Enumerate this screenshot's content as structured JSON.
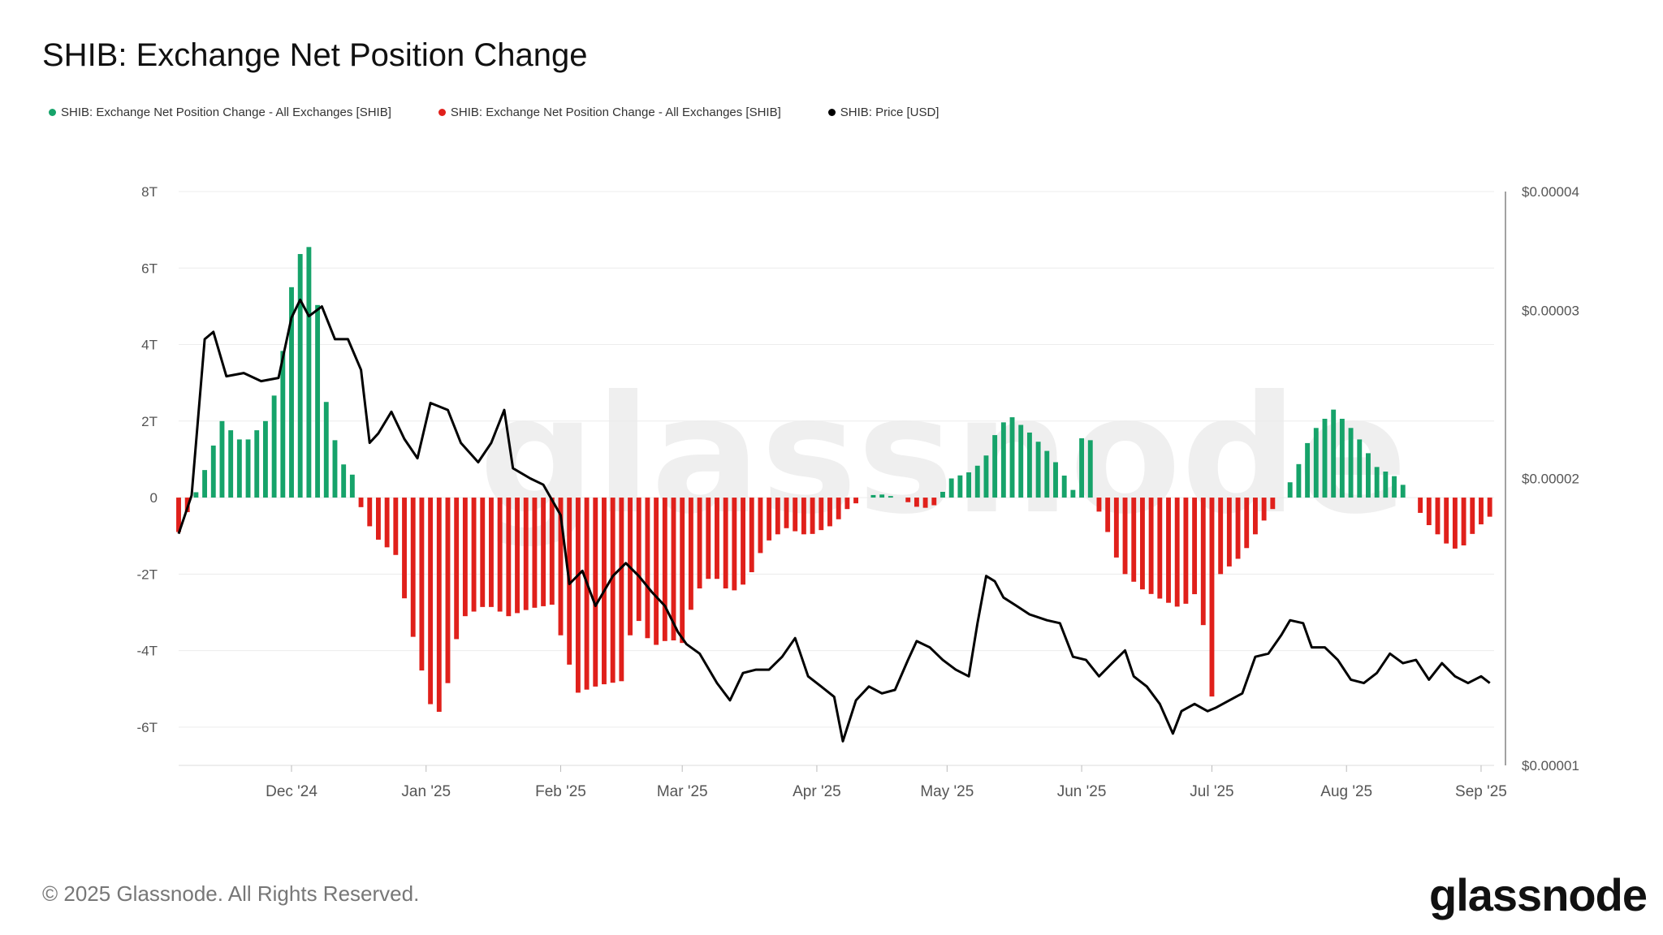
{
  "header": {
    "title": "SHIB: Exchange Net Position Change"
  },
  "legend": [
    {
      "label": "SHIB: Exchange Net Position Change - All Exchanges [SHIB]",
      "color": "#16a36a"
    },
    {
      "label": "SHIB: Exchange Net Position Change - All Exchanges [SHIB]",
      "color": "#e0201b"
    },
    {
      "label": "SHIB: Price [USD]",
      "color": "#000000"
    }
  ],
  "footer": {
    "copyright": "© 2025 Glassnode. All Rights Reserved.",
    "brand": "glassnode"
  },
  "watermark": "glassnode",
  "chart_data": {
    "type": "bar",
    "title": "SHIB: Exchange Net Position Change",
    "x_tick_labels": [
      "Dec '24",
      "Jan '25",
      "Feb '25",
      "Mar '25",
      "Apr '25",
      "May '25",
      "Jun '25",
      "Jul '25",
      "Aug '25",
      "Sep '25"
    ],
    "x_tick_dates": [
      "2024-12-01",
      "2025-01-01",
      "2025-02-01",
      "2025-03-01",
      "2025-04-01",
      "2025-05-01",
      "2025-06-01",
      "2025-07-01",
      "2025-08-01",
      "2025-09-01"
    ],
    "x_range": [
      "2024-11-05",
      "2025-09-04"
    ],
    "y_left": {
      "ticks": [
        "8T",
        "6T",
        "4T",
        "2T",
        "0",
        "-2T",
        "-4T",
        "-6T"
      ],
      "values": [
        8,
        6,
        4,
        2,
        0,
        -2,
        -4,
        -6
      ],
      "unit": "trillion SHIB",
      "range": [
        -7,
        8
      ]
    },
    "y_right": {
      "ticks": [
        "$0.00004",
        "$0.00003",
        "$0.00002",
        "$0.00001"
      ],
      "values": [
        4e-05,
        3e-05,
        2e-05,
        1e-05
      ],
      "scale": "log",
      "range": [
        1e-05,
        4e-05
      ]
    },
    "grid": true,
    "legend_position": "top-left",
    "series": [
      {
        "name": "SHIB: Exchange Net Position Change - All Exchanges [SHIB]",
        "kind": "bar",
        "color_positive": "#16a36a",
        "color_negative": "#e0201b",
        "points": [
          [
            "2024-11-05",
            -0.9
          ],
          [
            "2024-11-10",
            0.4
          ],
          [
            "2024-11-15",
            2.0
          ],
          [
            "2024-11-20",
            1.4
          ],
          [
            "2024-11-25",
            2.0
          ],
          [
            "2024-11-28",
            3.0
          ],
          [
            "2024-12-01",
            5.5
          ],
          [
            "2024-12-04",
            6.8
          ],
          [
            "2024-12-06",
            6.3
          ],
          [
            "2024-12-09",
            2.5
          ],
          [
            "2024-12-12",
            1.0
          ],
          [
            "2024-12-15",
            0.6
          ],
          [
            "2024-12-16",
            0.0
          ],
          [
            "2024-12-20",
            -1.0
          ],
          [
            "2024-12-25",
            -1.5
          ],
          [
            "2024-12-28",
            -3.2
          ],
          [
            "2025-01-02",
            -5.4
          ],
          [
            "2025-01-05",
            -5.7
          ],
          [
            "2025-01-07",
            -4.0
          ],
          [
            "2025-01-10",
            -3.1
          ],
          [
            "2025-01-15",
            -2.8
          ],
          [
            "2025-01-20",
            -3.1
          ],
          [
            "2025-01-25",
            -2.9
          ],
          [
            "2025-01-30",
            -2.8
          ],
          [
            "2025-02-02",
            -4.0
          ],
          [
            "2025-02-05",
            -5.1
          ],
          [
            "2025-02-10",
            -4.9
          ],
          [
            "2025-02-15",
            -4.8
          ],
          [
            "2025-02-18",
            -3.0
          ],
          [
            "2025-02-22",
            -3.9
          ],
          [
            "2025-02-26",
            -3.7
          ],
          [
            "2025-03-01",
            -3.8
          ],
          [
            "2025-03-04",
            -2.5
          ],
          [
            "2025-03-08",
            -2.0
          ],
          [
            "2025-03-12",
            -2.5
          ],
          [
            "2025-03-16",
            -2.2
          ],
          [
            "2025-03-20",
            -1.2
          ],
          [
            "2025-03-25",
            -0.8
          ],
          [
            "2025-03-30",
            -1.0
          ],
          [
            "2025-04-05",
            -0.7
          ],
          [
            "2025-04-08",
            -0.3
          ],
          [
            "2025-04-12",
            0.0
          ],
          [
            "2025-04-15",
            0.1
          ],
          [
            "2025-04-20",
            0.0
          ],
          [
            "2025-04-25",
            -0.3
          ],
          [
            "2025-04-28",
            -0.2
          ],
          [
            "2025-05-02",
            0.5
          ],
          [
            "2025-05-07",
            0.7
          ],
          [
            "2025-05-10",
            1.1
          ],
          [
            "2025-05-13",
            1.9
          ],
          [
            "2025-05-16",
            2.1
          ],
          [
            "2025-05-20",
            1.7
          ],
          [
            "2025-05-25",
            1.1
          ],
          [
            "2025-05-29",
            0.4
          ],
          [
            "2025-05-31",
            0.0
          ],
          [
            "2025-06-02",
            3.1
          ],
          [
            "2025-06-04",
            -0.1
          ],
          [
            "2025-06-07",
            -0.9
          ],
          [
            "2025-06-10",
            -1.9
          ],
          [
            "2025-06-15",
            -2.4
          ],
          [
            "2025-06-20",
            -2.7
          ],
          [
            "2025-06-24",
            -2.9
          ],
          [
            "2025-06-28",
            -2.4
          ],
          [
            "2025-07-01",
            -5.2
          ],
          [
            "2025-07-03",
            -2.0
          ],
          [
            "2025-07-08",
            -1.5
          ],
          [
            "2025-07-13",
            -0.6
          ],
          [
            "2025-07-17",
            0.0
          ],
          [
            "2025-07-20",
            0.6
          ],
          [
            "2025-07-24",
            1.7
          ],
          [
            "2025-07-29",
            2.3
          ],
          [
            "2025-08-03",
            1.7
          ],
          [
            "2025-08-08",
            0.8
          ],
          [
            "2025-08-13",
            0.5
          ],
          [
            "2025-08-16",
            0.0
          ],
          [
            "2025-08-19",
            -0.6
          ],
          [
            "2025-08-24",
            -1.2
          ],
          [
            "2025-08-27",
            -1.4
          ],
          [
            "2025-08-31",
            -0.8
          ],
          [
            "2025-09-03",
            -0.5
          ]
        ]
      },
      {
        "name": "SHIB: Price [USD]",
        "kind": "line",
        "color": "#000000",
        "points": [
          [
            "2024-11-05",
            1.75e-05
          ],
          [
            "2024-11-08",
            1.92e-05
          ],
          [
            "2024-11-11",
            2.8e-05
          ],
          [
            "2024-11-13",
            2.85e-05
          ],
          [
            "2024-11-16",
            2.56e-05
          ],
          [
            "2024-11-20",
            2.58e-05
          ],
          [
            "2024-11-24",
            2.53e-05
          ],
          [
            "2024-11-28",
            2.55e-05
          ],
          [
            "2024-12-01",
            2.95e-05
          ],
          [
            "2024-12-03",
            3.08e-05
          ],
          [
            "2024-12-05",
            2.96e-05
          ],
          [
            "2024-12-08",
            3.03e-05
          ],
          [
            "2024-12-11",
            2.8e-05
          ],
          [
            "2024-12-14",
            2.8e-05
          ],
          [
            "2024-12-17",
            2.6e-05
          ],
          [
            "2024-12-19",
            2.18e-05
          ],
          [
            "2024-12-21",
            2.23e-05
          ],
          [
            "2024-12-24",
            2.35e-05
          ],
          [
            "2024-12-27",
            2.2e-05
          ],
          [
            "2024-12-30",
            2.1e-05
          ],
          [
            "2025-01-02",
            2.4e-05
          ],
          [
            "2025-01-06",
            2.36e-05
          ],
          [
            "2025-01-09",
            2.18e-05
          ],
          [
            "2025-01-13",
            2.08e-05
          ],
          [
            "2025-01-16",
            2.18e-05
          ],
          [
            "2025-01-19",
            2.36e-05
          ],
          [
            "2025-01-21",
            2.05e-05
          ],
          [
            "2025-01-25",
            2e-05
          ],
          [
            "2025-01-28",
            1.97e-05
          ],
          [
            "2025-02-01",
            1.83e-05
          ],
          [
            "2025-02-03",
            1.55e-05
          ],
          [
            "2025-02-06",
            1.6e-05
          ],
          [
            "2025-02-09",
            1.47e-05
          ],
          [
            "2025-02-13",
            1.58e-05
          ],
          [
            "2025-02-16",
            1.63e-05
          ],
          [
            "2025-02-19",
            1.58e-05
          ],
          [
            "2025-02-22",
            1.52e-05
          ],
          [
            "2025-02-25",
            1.47e-05
          ],
          [
            "2025-02-28",
            1.38e-05
          ],
          [
            "2025-03-02",
            1.34e-05
          ],
          [
            "2025-03-05",
            1.31e-05
          ],
          [
            "2025-03-09",
            1.22e-05
          ],
          [
            "2025-03-12",
            1.17e-05
          ],
          [
            "2025-03-15",
            1.25e-05
          ],
          [
            "2025-03-18",
            1.26e-05
          ],
          [
            "2025-03-21",
            1.26e-05
          ],
          [
            "2025-03-24",
            1.3e-05
          ],
          [
            "2025-03-27",
            1.36e-05
          ],
          [
            "2025-03-30",
            1.24e-05
          ],
          [
            "2025-04-02",
            1.21e-05
          ],
          [
            "2025-04-05",
            1.18e-05
          ],
          [
            "2025-04-07",
            1.06e-05
          ],
          [
            "2025-04-10",
            1.17e-05
          ],
          [
            "2025-04-13",
            1.21e-05
          ],
          [
            "2025-04-16",
            1.19e-05
          ],
          [
            "2025-04-19",
            1.2e-05
          ],
          [
            "2025-04-22",
            1.29e-05
          ],
          [
            "2025-04-24",
            1.35e-05
          ],
          [
            "2025-04-27",
            1.33e-05
          ],
          [
            "2025-04-30",
            1.29e-05
          ],
          [
            "2025-05-03",
            1.26e-05
          ],
          [
            "2025-05-06",
            1.24e-05
          ],
          [
            "2025-05-08",
            1.41e-05
          ],
          [
            "2025-05-10",
            1.58e-05
          ],
          [
            "2025-05-12",
            1.56e-05
          ],
          [
            "2025-05-14",
            1.5e-05
          ],
          [
            "2025-05-17",
            1.47e-05
          ],
          [
            "2025-05-20",
            1.44e-05
          ],
          [
            "2025-05-24",
            1.42e-05
          ],
          [
            "2025-05-27",
            1.41e-05
          ],
          [
            "2025-05-30",
            1.3e-05
          ],
          [
            "2025-06-02",
            1.29e-05
          ],
          [
            "2025-06-05",
            1.24e-05
          ],
          [
            "2025-06-08",
            1.28e-05
          ],
          [
            "2025-06-11",
            1.32e-05
          ],
          [
            "2025-06-13",
            1.24e-05
          ],
          [
            "2025-06-16",
            1.21e-05
          ],
          [
            "2025-06-19",
            1.16e-05
          ],
          [
            "2025-06-22",
            1.08e-05
          ],
          [
            "2025-06-24",
            1.14e-05
          ],
          [
            "2025-06-27",
            1.16e-05
          ],
          [
            "2025-06-30",
            1.14e-05
          ],
          [
            "2025-07-02",
            1.15e-05
          ],
          [
            "2025-07-05",
            1.17e-05
          ],
          [
            "2025-07-08",
            1.19e-05
          ],
          [
            "2025-07-11",
            1.3e-05
          ],
          [
            "2025-07-14",
            1.31e-05
          ],
          [
            "2025-07-17",
            1.37e-05
          ],
          [
            "2025-07-19",
            1.42e-05
          ],
          [
            "2025-07-22",
            1.41e-05
          ],
          [
            "2025-07-24",
            1.33e-05
          ],
          [
            "2025-07-27",
            1.33e-05
          ],
          [
            "2025-07-30",
            1.29e-05
          ],
          [
            "2025-08-02",
            1.23e-05
          ],
          [
            "2025-08-05",
            1.22e-05
          ],
          [
            "2025-08-08",
            1.25e-05
          ],
          [
            "2025-08-11",
            1.31e-05
          ],
          [
            "2025-08-14",
            1.28e-05
          ],
          [
            "2025-08-17",
            1.29e-05
          ],
          [
            "2025-08-20",
            1.23e-05
          ],
          [
            "2025-08-23",
            1.28e-05
          ],
          [
            "2025-08-26",
            1.24e-05
          ],
          [
            "2025-08-29",
            1.22e-05
          ],
          [
            "2025-09-01",
            1.24e-05
          ],
          [
            "2025-09-03",
            1.22e-05
          ]
        ]
      }
    ]
  }
}
